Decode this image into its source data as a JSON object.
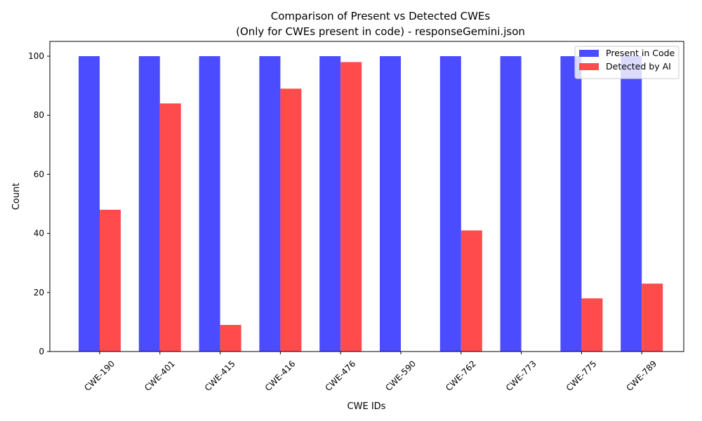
{
  "chart_data": {
    "type": "bar",
    "title": "Comparison of Present vs Detected CWEs",
    "subtitle": "(Only for CWEs present in code) - responseGemini.json",
    "xlabel": "CWE IDs",
    "ylabel": "Count",
    "ylim": [
      0,
      105
    ],
    "yticks": [
      0,
      20,
      40,
      60,
      80,
      100
    ],
    "grid": false,
    "legend_position": "top-right",
    "categories": [
      "CWE-190",
      "CWE-401",
      "CWE-415",
      "CWE-416",
      "CWE-476",
      "CWE-590",
      "CWE-762",
      "CWE-773",
      "CWE-775",
      "CWE-789"
    ],
    "series": [
      {
        "name": "Present in Code",
        "color": "#4b4bff",
        "values": [
          100,
          100,
          100,
          100,
          100,
          100,
          100,
          100,
          100,
          100
        ]
      },
      {
        "name": "Detected by AI",
        "color": "#ff4b4b",
        "values": [
          48,
          84,
          9,
          89,
          98,
          0,
          41,
          0,
          18,
          23
        ]
      }
    ]
  }
}
